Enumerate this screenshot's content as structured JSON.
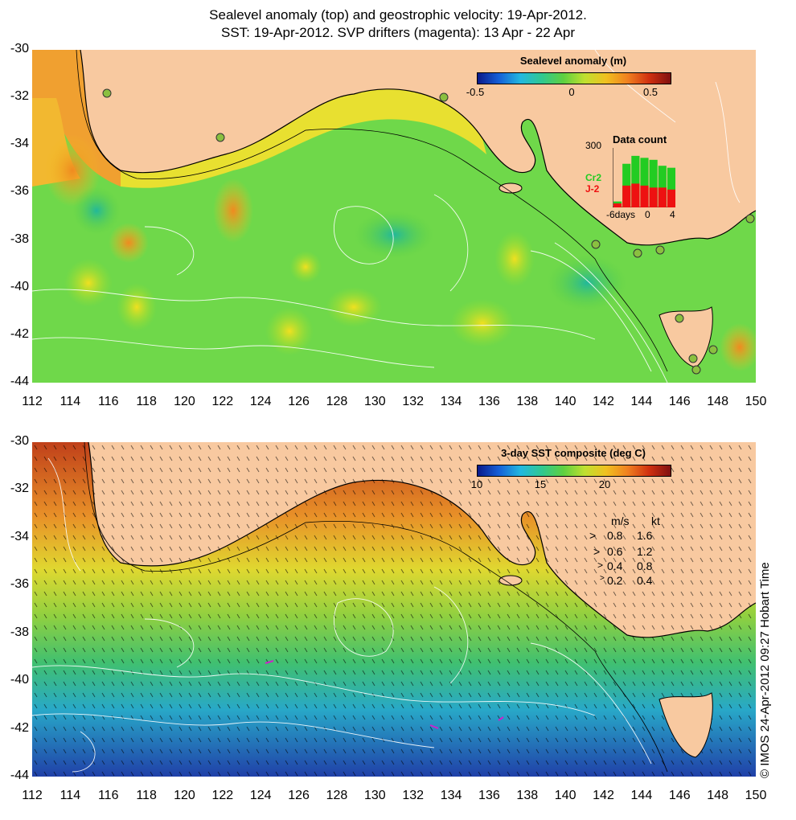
{
  "titles": {
    "line1": "Sealevel anomaly (top) and geostrophic velocity: 19-Apr-2012.",
    "line2": "SST: 19-Apr-2012. SVP drifters (magenta): 13 Apr - 22 Apr"
  },
  "axes": {
    "lat_labels": [
      "-30",
      "-32",
      "-34",
      "-36",
      "-38",
      "-40",
      "-42",
      "-44"
    ],
    "lon_labels": [
      "112",
      "114",
      "116",
      "118",
      "120",
      "122",
      "124",
      "126",
      "128",
      "130",
      "132",
      "134",
      "136",
      "138",
      "140",
      "142",
      "144",
      "146",
      "148",
      "150"
    ],
    "lon_range": [
      112,
      150
    ],
    "lat_range": [
      -44,
      -30
    ]
  },
  "top_panel": {
    "colorbar_title": "Sealevel anomaly (m)",
    "colorbar_ticks": [
      "-0.5",
      "0",
      "0.5"
    ],
    "colorbar_range": [
      -0.6,
      0.6
    ],
    "histogram": {
      "title": "Data count",
      "y_max_label": "300",
      "x_labels": [
        "-6days",
        "0",
        "4"
      ],
      "series_labels": [
        "Cr2",
        "J-2"
      ],
      "series_colors": [
        "#22cc22",
        "#ee1111"
      ],
      "green_values": [
        30,
        220,
        260,
        250,
        240,
        210,
        200
      ],
      "red_values": [
        20,
        110,
        120,
        110,
        100,
        100,
        90
      ],
      "y_max": 300
    }
  },
  "bottom_panel": {
    "colorbar_title": "3-day SST composite (deg C)",
    "colorbar_ticks": [
      "10",
      "15",
      "20"
    ],
    "colorbar_range": [
      10,
      25
    ],
    "velocity_legend": {
      "header_ms": "m/s",
      "header_kt": "kt",
      "rows": [
        {
          "ms": "0.8",
          "kt": "1.6"
        },
        {
          "ms": "0.6",
          "kt": "1.2"
        },
        {
          "ms": "0.4",
          "kt": "0.8"
        },
        {
          "ms": "0.2",
          "kt": "0.4"
        }
      ]
    }
  },
  "credit": "© IMOS 24-Apr-2012 09:27 Hobart Time"
}
